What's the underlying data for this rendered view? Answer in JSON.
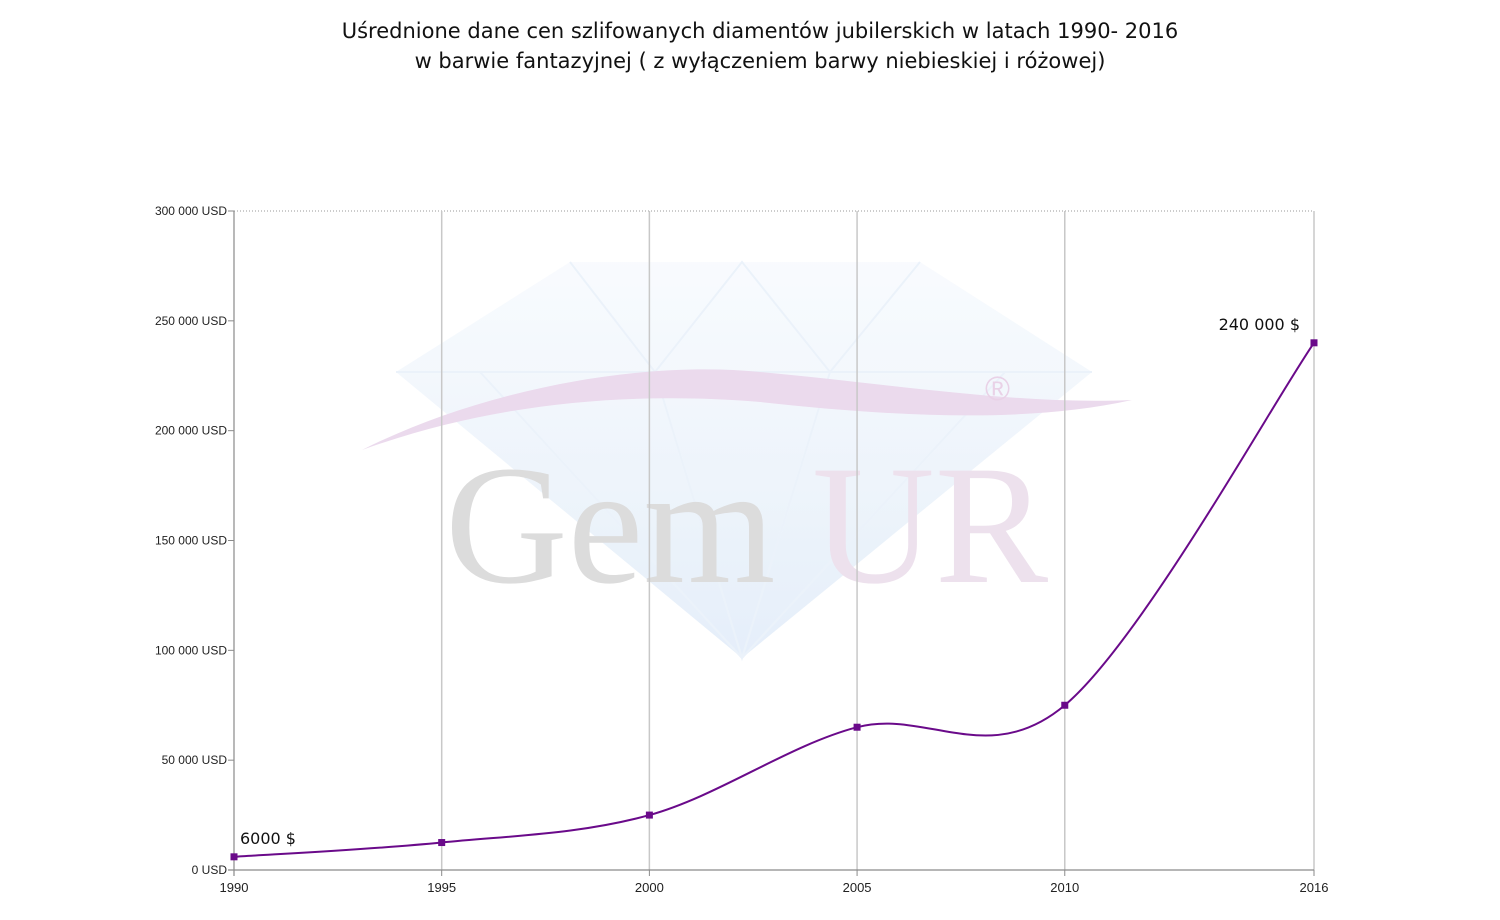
{
  "chart_data": {
    "type": "line",
    "title_lines": [
      "Uśrednione dane cen szlifowanych diamentów jubilerskich w latach 1990- 2016",
      "w barwie fantazyjnej ( z wyłączeniem barwy niebieskiej i różowej)"
    ],
    "x": [
      1990,
      1995,
      2000,
      2005,
      2010,
      2016
    ],
    "x_tick_labels": [
      "1990",
      "1995",
      "2000",
      "2005",
      "2010",
      "2016"
    ],
    "series": [
      {
        "values": [
          6000,
          12500,
          25000,
          65000,
          75000,
          240000
        ],
        "color": "#6a0a8a"
      }
    ],
    "ylim": [
      0,
      300000
    ],
    "y_ticks": [
      0,
      50000,
      100000,
      150000,
      200000,
      250000,
      300000
    ],
    "y_tick_labels": [
      "0 USD",
      "50 000 USD",
      "100 000 USD",
      "150 000 USD",
      "200 000 USD",
      "250 000 USD",
      "300 000 USD"
    ],
    "data_labels": [
      {
        "index": 0,
        "text": "6000 $"
      },
      {
        "index": 5,
        "text": "240 000 $"
      }
    ],
    "grid": {
      "vertical": true,
      "horizontal": false
    },
    "legend": "none"
  },
  "watermark": {
    "text_gem": "Gem",
    "text_ur": "UR",
    "registered_mark": "®",
    "diamond_color": "#dce8f6",
    "swoosh_color": "#e8d4ea"
  }
}
